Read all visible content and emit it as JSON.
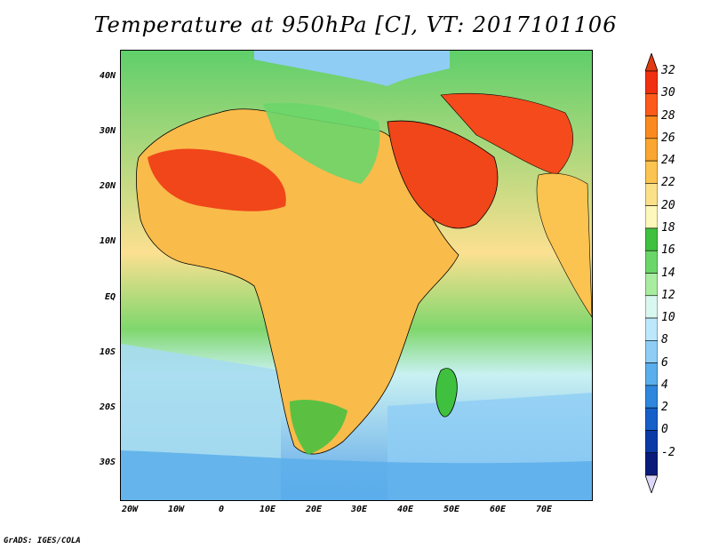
{
  "title": "Temperature at 950hPa [C], VT: 2017101106",
  "credit": "GrADS: IGES/COLA",
  "map": {
    "lat_labels": [
      "40N",
      "30N",
      "20N",
      "10N",
      "EQ",
      "10S",
      "20S",
      "30S"
    ],
    "lon_labels": [
      "20W",
      "10W",
      "0",
      "10E",
      "20E",
      "30E",
      "40E",
      "50E",
      "60E",
      "70E"
    ],
    "region": "Africa and Arabian Peninsula / South Asia",
    "ocean_color": "#bfe8f6",
    "land_base_color": "#f6d87a"
  },
  "colorbar": {
    "levels": [
      "32",
      "30",
      "28",
      "26",
      "24",
      "22",
      "20",
      "18",
      "16",
      "14",
      "12",
      "10",
      "8",
      "6",
      "4",
      "2",
      "0",
      "-2"
    ],
    "colors": [
      "#f03010",
      "#fb5a1a",
      "#fa8a20",
      "#f9a632",
      "#fbc350",
      "#fbe08a",
      "#fdf7bb",
      "#3fc13f",
      "#6ad66a",
      "#a8eca0",
      "#d8f7ef",
      "#bde7fb",
      "#8fcdf5",
      "#5aaeeb",
      "#2e87dd",
      "#155fc9",
      "#0b3aa6",
      "#0a1b7a"
    ],
    "top_cap_color": "#e23a10",
    "bottom_cap_color": "#ddd7f7"
  }
}
